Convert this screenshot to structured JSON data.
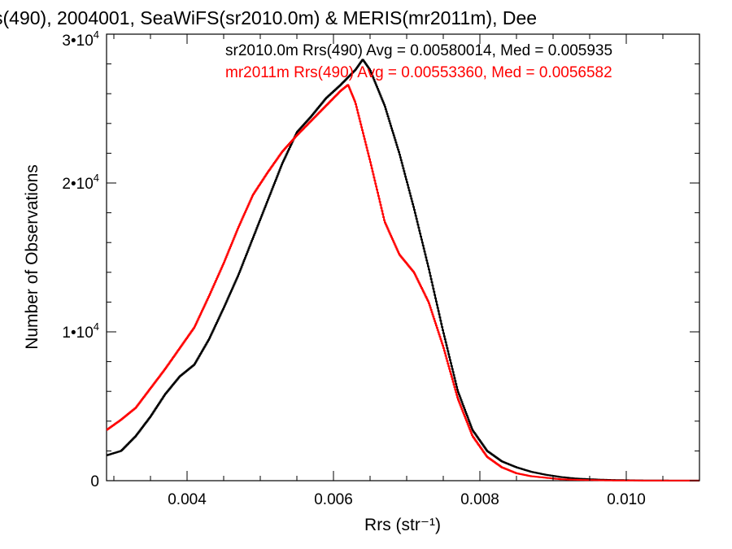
{
  "chart_data": {
    "type": "line",
    "title": "s(490), 2004001, SeaWiFS(sr2010.0m) & MERIS(mr2011m), Dee",
    "xlabel": "Rrs (str⁻¹)",
    "ylabel": "Number of Observations",
    "xlim": [
      0.0029,
      0.011
    ],
    "ylim": [
      0,
      30000
    ],
    "x_ticks": [
      {
        "value": 0.004,
        "label": "0.004"
      },
      {
        "value": 0.006,
        "label": "0.006"
      },
      {
        "value": 0.008,
        "label": "0.008"
      },
      {
        "value": 0.01,
        "label": "0.010"
      }
    ],
    "y_ticks": [
      {
        "value": 0,
        "label": "0",
        "exp": ""
      },
      {
        "value": 10000,
        "label": "1•10",
        "exp": "4"
      },
      {
        "value": 20000,
        "label": "2•10",
        "exp": "4"
      },
      {
        "value": 30000,
        "label": "3•10",
        "exp": "4"
      }
    ],
    "grid": false,
    "legend": [
      {
        "text": "sr2010.0m Rrs(490) Avg = 0.00580014, Med = 0.005935",
        "color": "#000000"
      },
      {
        "text": "mr2011m Rrs(490) Avg = 0.00553360, Med = 0.0056582",
        "color": "#ff0000"
      }
    ],
    "series": [
      {
        "color": "#000000",
        "x": [
          0.0029,
          0.0031,
          0.0033,
          0.0035,
          0.0037,
          0.0039,
          0.0041,
          0.0043,
          0.0045,
          0.0047,
          0.0049,
          0.0051,
          0.0053,
          0.0055,
          0.0057,
          0.0059,
          0.0061,
          0.0063,
          0.0064,
          0.0065,
          0.0067,
          0.0069,
          0.0071,
          0.0073,
          0.0075,
          0.0077,
          0.0079,
          0.0081,
          0.0083,
          0.0085,
          0.0087,
          0.0089,
          0.0091,
          0.0093,
          0.0095,
          0.0097,
          0.0099,
          0.0101,
          0.0103,
          0.0105,
          0.0107,
          0.0109,
          0.011
        ],
        "y": [
          1700,
          2000,
          3000,
          4300,
          5800,
          7000,
          7800,
          9500,
          11600,
          13800,
          16300,
          18800,
          21300,
          23400,
          24500,
          25700,
          26600,
          27600,
          28300,
          27600,
          25200,
          22000,
          18300,
          14300,
          10000,
          6000,
          3400,
          2000,
          1300,
          900,
          600,
          400,
          250,
          150,
          100,
          60,
          40,
          25,
          15,
          10,
          5,
          5,
          5
        ]
      },
      {
        "color": "#ff0000",
        "x": [
          0.0029,
          0.0031,
          0.0033,
          0.0035,
          0.0037,
          0.0039,
          0.0041,
          0.0043,
          0.0045,
          0.0047,
          0.0049,
          0.0051,
          0.0053,
          0.0055,
          0.0057,
          0.0059,
          0.0061,
          0.0062,
          0.0063,
          0.0065,
          0.0067,
          0.0069,
          0.0071,
          0.0073,
          0.0075,
          0.0077,
          0.0079,
          0.0081,
          0.0083,
          0.0085,
          0.0087,
          0.0089,
          0.0091,
          0.0093,
          0.0095,
          0.0097,
          0.0099,
          0.0101,
          0.0103,
          0.0105,
          0.0107,
          0.0109,
          0.011
        ],
        "y": [
          3400,
          4100,
          4900,
          6200,
          7500,
          8900,
          10300,
          12400,
          14600,
          17000,
          19200,
          20700,
          22100,
          23200,
          24200,
          25200,
          26200,
          26600,
          25400,
          21500,
          17400,
          15200,
          14000,
          12000,
          9000,
          5500,
          3000,
          1600,
          900,
          500,
          300,
          200,
          100,
          60,
          40,
          25,
          15,
          10,
          5,
          5,
          5,
          5,
          5
        ]
      }
    ]
  }
}
